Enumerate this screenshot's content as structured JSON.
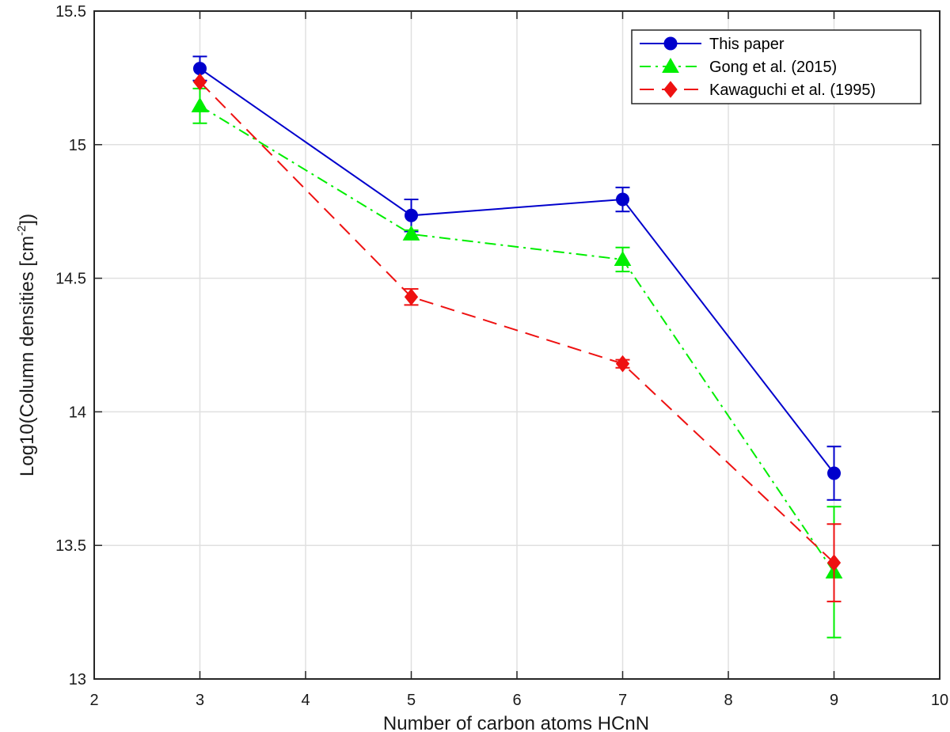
{
  "chart_data": {
    "type": "line",
    "title": "",
    "xlabel": "Number of carbon atoms HCnN",
    "ylabel_main": "Log10(Column densities [cm",
    "ylabel_sup": "-2",
    "ylabel_end": "])",
    "xlim": [
      2,
      10
    ],
    "ylim": [
      13,
      15.5
    ],
    "xticks": [
      2,
      3,
      4,
      5,
      6,
      7,
      8,
      9,
      10
    ],
    "yticks": [
      13,
      13.5,
      14,
      14.5,
      15,
      15.5
    ],
    "xtick_labels": [
      "2",
      "3",
      "4",
      "5",
      "6",
      "7",
      "8",
      "9",
      "10"
    ],
    "ytick_labels": [
      "13",
      "13.5",
      "14",
      "14.5",
      "15",
      "15.5"
    ],
    "grid": true,
    "legend_position": "top-right",
    "series": [
      {
        "name": "This paper",
        "color": "#0000cc",
        "marker": "circle",
        "dash": "solid",
        "x": [
          3,
          5,
          7,
          9
        ],
        "y": [
          15.285,
          14.735,
          14.795,
          13.77
        ],
        "err": [
          0.045,
          0.06,
          0.045,
          0.1
        ]
      },
      {
        "name": "Gong et al. (2015)",
        "color": "#00ee00",
        "marker": "triangle",
        "dash": "dashdot",
        "x": [
          3,
          5,
          7,
          9
        ],
        "y": [
          15.145,
          14.665,
          14.57,
          13.4
        ],
        "err": [
          0.065,
          0.015,
          0.045,
          0.245
        ]
      },
      {
        "name": "Kawaguchi et al. (1995)",
        "color": "#ee1111",
        "marker": "diamond",
        "dash": "dashed",
        "x": [
          3,
          5,
          7,
          9
        ],
        "y": [
          15.235,
          14.43,
          14.18,
          13.435
        ],
        "err": [
          0.0,
          0.03,
          0.015,
          0.145
        ]
      }
    ]
  }
}
